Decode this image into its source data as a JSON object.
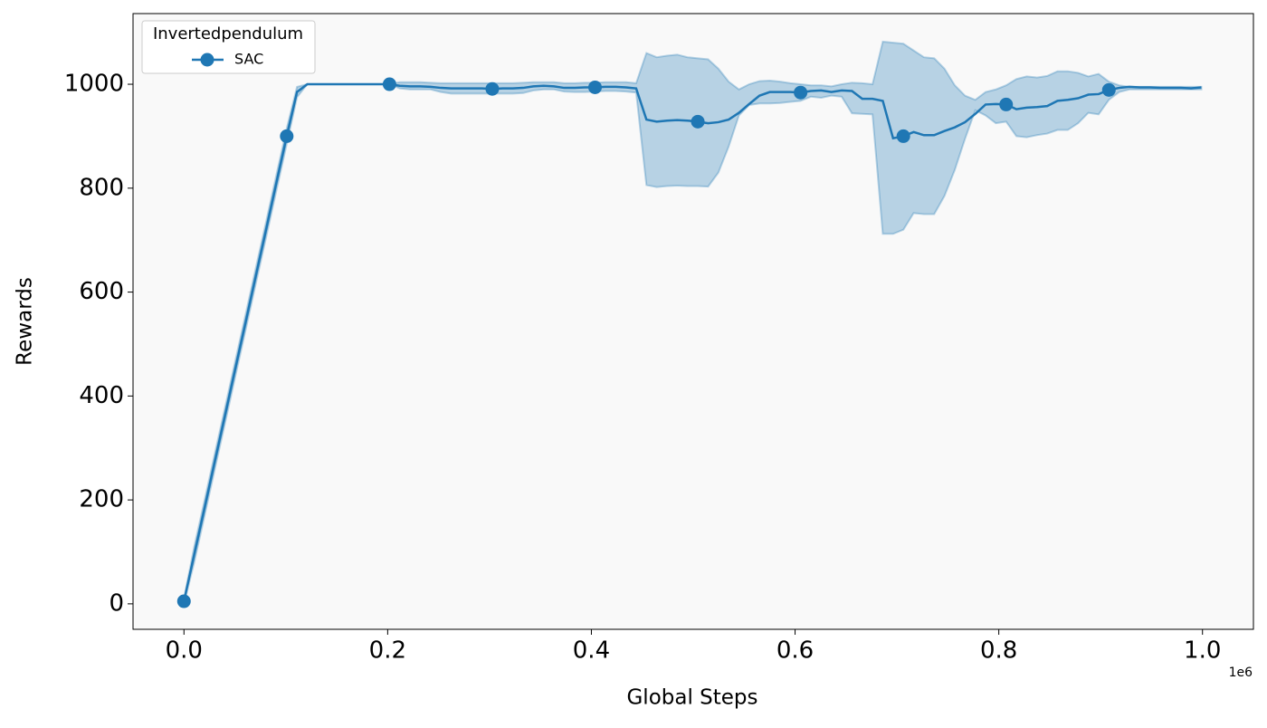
{
  "chart_data": {
    "type": "line",
    "xlabel": "Global Steps",
    "ylabel": "Rewards",
    "x_offset_label": "1e6",
    "legend_title": "Invertedpendulum",
    "legend_position": "upper left",
    "xlim": [
      -50000,
      1050000
    ],
    "xticks": [
      {
        "value": 0,
        "label": "0.0"
      },
      {
        "value": 200000,
        "label": "0.2"
      },
      {
        "value": 400000,
        "label": "0.4"
      },
      {
        "value": 600000,
        "label": "0.6"
      },
      {
        "value": 800000,
        "label": "0.8"
      },
      {
        "value": 1000000,
        "label": "1.0"
      }
    ],
    "ylim": [
      -49,
      1136
    ],
    "yticks": [
      0,
      200,
      400,
      600,
      800,
      1000
    ],
    "marker_every": 10,
    "x": [
      0,
      10090,
      20180,
      30270,
      40360,
      50450,
      60540,
      70630,
      80720,
      90810,
      100900,
      110990,
      121080,
      131170,
      141260,
      151350,
      161440,
      171530,
      181620,
      191710,
      201800,
      211890,
      221980,
      232070,
      242160,
      252250,
      262340,
      272430,
      282520,
      292610,
      302700,
      312790,
      322880,
      332970,
      343060,
      353150,
      363240,
      373330,
      383420,
      393510,
      403600,
      413690,
      423780,
      433870,
      443960,
      454050,
      464140,
      474230,
      484320,
      494410,
      504500,
      514590,
      524680,
      534770,
      544860,
      554950,
      565040,
      575130,
      585220,
      595310,
      605400,
      615490,
      625580,
      635670,
      645760,
      655850,
      665940,
      676030,
      686120,
      696210,
      706300,
      716390,
      726480,
      736570,
      746660,
      756750,
      766840,
      776930,
      787020,
      797110,
      807200,
      817290,
      827380,
      837470,
      847560,
      857650,
      867740,
      877830,
      887920,
      898010,
      908100,
      918190,
      928280,
      938370,
      948460,
      958550,
      968640,
      978730,
      988820,
      998910
    ],
    "series": [
      {
        "name": "SAC",
        "color": "#1f77b4",
        "values": [
          5,
          95,
          184,
          274,
          363,
          453,
          542,
          632,
          721,
          811,
          900,
          985,
          1000,
          1000,
          1000,
          1000,
          1000,
          1000,
          1000,
          1000,
          1000,
          997,
          996,
          996,
          995,
          993,
          992,
          992,
          992,
          992,
          991,
          992,
          992,
          993,
          996,
          997,
          996,
          993,
          993,
          994,
          994,
          995,
          995,
          994,
          992,
          932,
          928,
          930,
          931,
          930,
          928,
          925,
          927,
          932,
          945,
          962,
          978,
          985,
          985,
          985,
          984,
          987,
          988,
          985,
          988,
          987,
          972,
          972,
          968,
          896,
          900,
          908,
          902,
          902,
          910,
          917,
          927,
          943,
          961,
          962,
          961,
          952,
          955,
          956,
          958,
          968,
          970,
          973,
          980,
          981,
          989,
          993,
          995,
          994,
          994,
          993,
          993,
          993,
          992,
          994
        ],
        "upper": [
          10,
          110,
          199,
          289,
          378,
          468,
          557,
          647,
          736,
          826,
          915,
          995,
          1000,
          1000,
          1000,
          1000,
          1000,
          1000,
          1000,
          1000,
          1000,
          1004,
          1004,
          1004,
          1003,
          1002,
          1002,
          1002,
          1002,
          1002,
          1002,
          1002,
          1002,
          1003,
          1004,
          1004,
          1004,
          1002,
          1002,
          1003,
          1003,
          1004,
          1004,
          1004,
          1002,
          1060,
          1052,
          1055,
          1057,
          1052,
          1050,
          1048,
          1030,
          1005,
          990,
          1000,
          1006,
          1007,
          1005,
          1002,
          1000,
          998,
          998,
          996,
          1000,
          1003,
          1002,
          1000,
          1082,
          1080,
          1078,
          1065,
          1052,
          1050,
          1030,
          998,
          978,
          970,
          985,
          990,
          998,
          1010,
          1015,
          1013,
          1016,
          1025,
          1025,
          1022,
          1015,
          1020,
          1005,
          998,
          995,
          995,
          995,
          995,
          995,
          995,
          995,
          995
        ],
        "lower": [
          0,
          80,
          169,
          259,
          348,
          438,
          527,
          617,
          706,
          796,
          885,
          975,
          1000,
          1000,
          1000,
          1000,
          1000,
          1000,
          1000,
          1000,
          1000,
          992,
          990,
          990,
          990,
          985,
          982,
          982,
          982,
          982,
          982,
          982,
          982,
          983,
          988,
          990,
          990,
          986,
          985,
          985,
          986,
          987,
          987,
          986,
          984,
          806,
          802,
          804,
          805,
          804,
          804,
          803,
          830,
          880,
          940,
          960,
          963,
          963,
          964,
          966,
          968,
          976,
          974,
          978,
          976,
          944,
          943,
          942,
          712,
          712,
          720,
          752,
          750,
          750,
          785,
          835,
          895,
          950,
          940,
          925,
          928,
          900,
          898,
          902,
          905,
          912,
          912,
          925,
          945,
          942,
          970,
          985,
          990,
          990,
          990,
          990,
          990,
          990,
          990,
          990
        ]
      }
    ]
  }
}
